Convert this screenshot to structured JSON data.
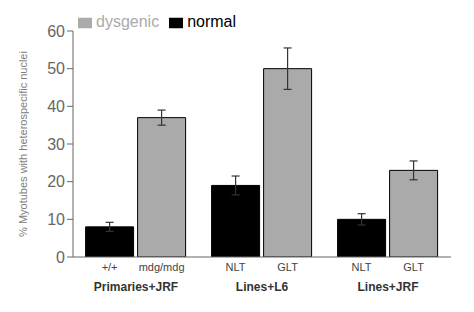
{
  "chart_data": {
    "type": "bar",
    "ylabel": "% Myotubes with heterospecific nuclei",
    "categories": [
      "Primaries+JRF",
      "Lines+L6",
      "Lines+JRF"
    ],
    "series": [
      {
        "name": "normal",
        "color": "#000000",
        "values": [
          8,
          19,
          10
        ],
        "errors": [
          1.2,
          2.5,
          1.5
        ],
        "bar_labels": [
          "+/+",
          "NLT",
          "NLT"
        ]
      },
      {
        "name": "dysgenic",
        "color": "#aaaaaa",
        "values": [
          37,
          50,
          23
        ],
        "errors": [
          2.0,
          5.5,
          2.5
        ],
        "bar_labels": [
          "mdg/mdg",
          "GLT",
          "GLT"
        ]
      }
    ],
    "ylim": [
      0,
      60
    ],
    "yticks": [
      0,
      10,
      20,
      30,
      40,
      50,
      60
    ],
    "grid": false,
    "legend": "upper left"
  }
}
